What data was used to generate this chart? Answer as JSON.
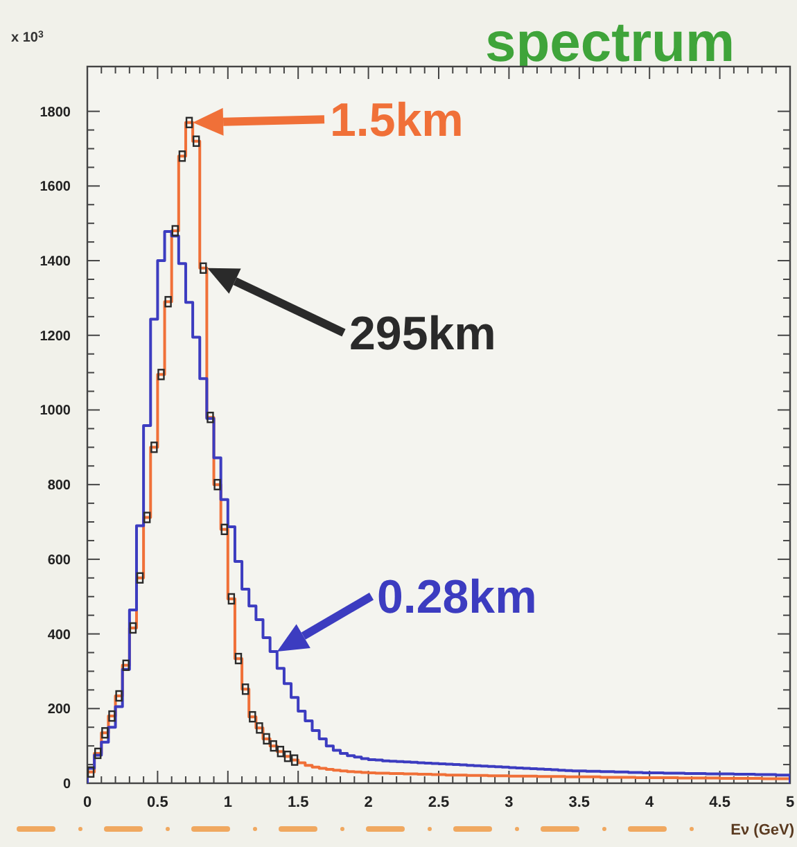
{
  "chart_data": {
    "type": "histogram",
    "title": "spectrum",
    "xlabel": "Eν (GeV)",
    "ylabel": "x 10$^{3}$",
    "bins": [
      0,
      0.05,
      0.1,
      0.15,
      0.2,
      0.25,
      0.3,
      0.35,
      0.4,
      0.45,
      0.5,
      0.55,
      0.6,
      0.65,
      0.7,
      0.75,
      0.8,
      0.85,
      0.9,
      0.95,
      1,
      1.05,
      1.1,
      1.15,
      1.2,
      1.25,
      1.3,
      1.35,
      1.4,
      1.45,
      1.5,
      1.55,
      1.6,
      1.65,
      1.7,
      1.75,
      1.8,
      1.85,
      1.9,
      1.95,
      2,
      2.05,
      2.1,
      2.15,
      2.2,
      2.25,
      2.3,
      2.35,
      2.4,
      2.45,
      2.5,
      2.55,
      2.6,
      2.65,
      2.7,
      2.75,
      2.8,
      2.85,
      2.9,
      2.95,
      3,
      3.05,
      3.1,
      3.15,
      3.2,
      3.25,
      3.3,
      3.35,
      3.4,
      3.45,
      3.5,
      3.55,
      3.6,
      3.65,
      3.7,
      3.75,
      3.8,
      3.85,
      3.9,
      3.95,
      4,
      4.05,
      4.1,
      4.15,
      4.2,
      4.25,
      4.3,
      4.35,
      4.4,
      4.45,
      4.5,
      4.55,
      4.6,
      4.65,
      4.7,
      4.75,
      4.8,
      4.85,
      4.9,
      4.95,
      5
    ],
    "series": [
      {
        "name": "1.5km",
        "color": "#f07038",
        "values": [
          30,
          80,
          135,
          180,
          234,
          316,
          416,
          550,
          712,
          900,
          1095,
          1290,
          1480,
          1680,
          1770,
          1720,
          1380,
          980,
          800,
          680,
          494,
          334,
          252,
          178,
          148,
          119,
          100,
          85,
          72,
          62,
          55,
          48,
          43,
          40,
          37,
          35,
          33,
          31,
          30,
          29,
          28,
          27,
          27,
          26,
          26,
          25,
          25,
          24,
          24,
          23,
          23,
          22,
          22,
          22,
          21,
          21,
          21,
          20,
          20,
          20,
          19,
          19,
          19,
          19,
          18,
          18,
          18,
          18,
          17,
          17,
          17,
          17,
          17,
          16,
          16,
          16,
          16,
          16,
          15,
          15,
          15,
          15,
          15,
          15,
          14,
          14,
          14,
          14,
          14,
          14,
          13,
          13,
          13,
          13,
          13,
          13,
          12,
          12,
          12,
          12
        ]
      },
      {
        "name": "295km",
        "color": "#2a2a2a",
        "type": "scatter",
        "x": [
          0.025,
          0.075,
          0.125,
          0.175,
          0.225,
          0.275,
          0.325,
          0.375,
          0.425,
          0.475,
          0.525,
          0.575,
          0.625,
          0.675,
          0.725,
          0.775,
          0.825,
          0.875,
          0.925,
          0.975,
          1.025,
          1.075,
          1.125,
          1.175,
          1.225,
          1.275,
          1.325,
          1.375,
          1.425,
          1.475
        ],
        "values": [
          30,
          80,
          135,
          180,
          234,
          316,
          416,
          550,
          712,
          900,
          1095,
          1290,
          1480,
          1680,
          1770,
          1720,
          1380,
          980,
          800,
          680,
          494,
          334,
          252,
          178,
          148,
          119,
          100,
          85,
          72,
          62
        ]
      },
      {
        "name": "0.28km",
        "color": "#3c3cc0",
        "values": [
          40,
          75,
          110,
          150,
          205,
          305,
          464,
          690,
          958,
          1243,
          1400,
          1478,
          1466,
          1392,
          1288,
          1195,
          1084,
          977,
          872,
          760,
          687,
          594,
          520,
          475,
          438,
          390,
          353,
          308,
          267,
          230,
          193,
          167,
          141,
          119,
          100,
          88,
          80,
          74,
          70,
          66,
          63,
          62,
          60,
          59,
          58,
          57,
          56,
          55,
          54,
          53,
          52,
          51,
          50,
          49,
          48,
          47,
          46,
          45,
          44,
          43,
          42,
          41,
          40,
          39,
          38,
          37,
          36,
          35,
          34,
          33,
          33,
          32,
          32,
          31,
          31,
          30,
          30,
          29,
          29,
          28,
          28,
          28,
          27,
          27,
          27,
          26,
          26,
          26,
          25,
          25,
          25,
          25,
          24,
          24,
          24,
          23,
          23,
          23,
          22,
          22
        ]
      }
    ],
    "xlim": [
      0,
      5
    ],
    "xticks": [
      0,
      0.5,
      1,
      1.5,
      2,
      2.5,
      3,
      3.5,
      4,
      4.5,
      5
    ],
    "ylim": [
      0,
      1920
    ],
    "yticks": [
      0,
      200,
      400,
      600,
      800,
      1000,
      1200,
      1400,
      1600,
      1800
    ],
    "marker": "square",
    "legend": "top"
  }
}
